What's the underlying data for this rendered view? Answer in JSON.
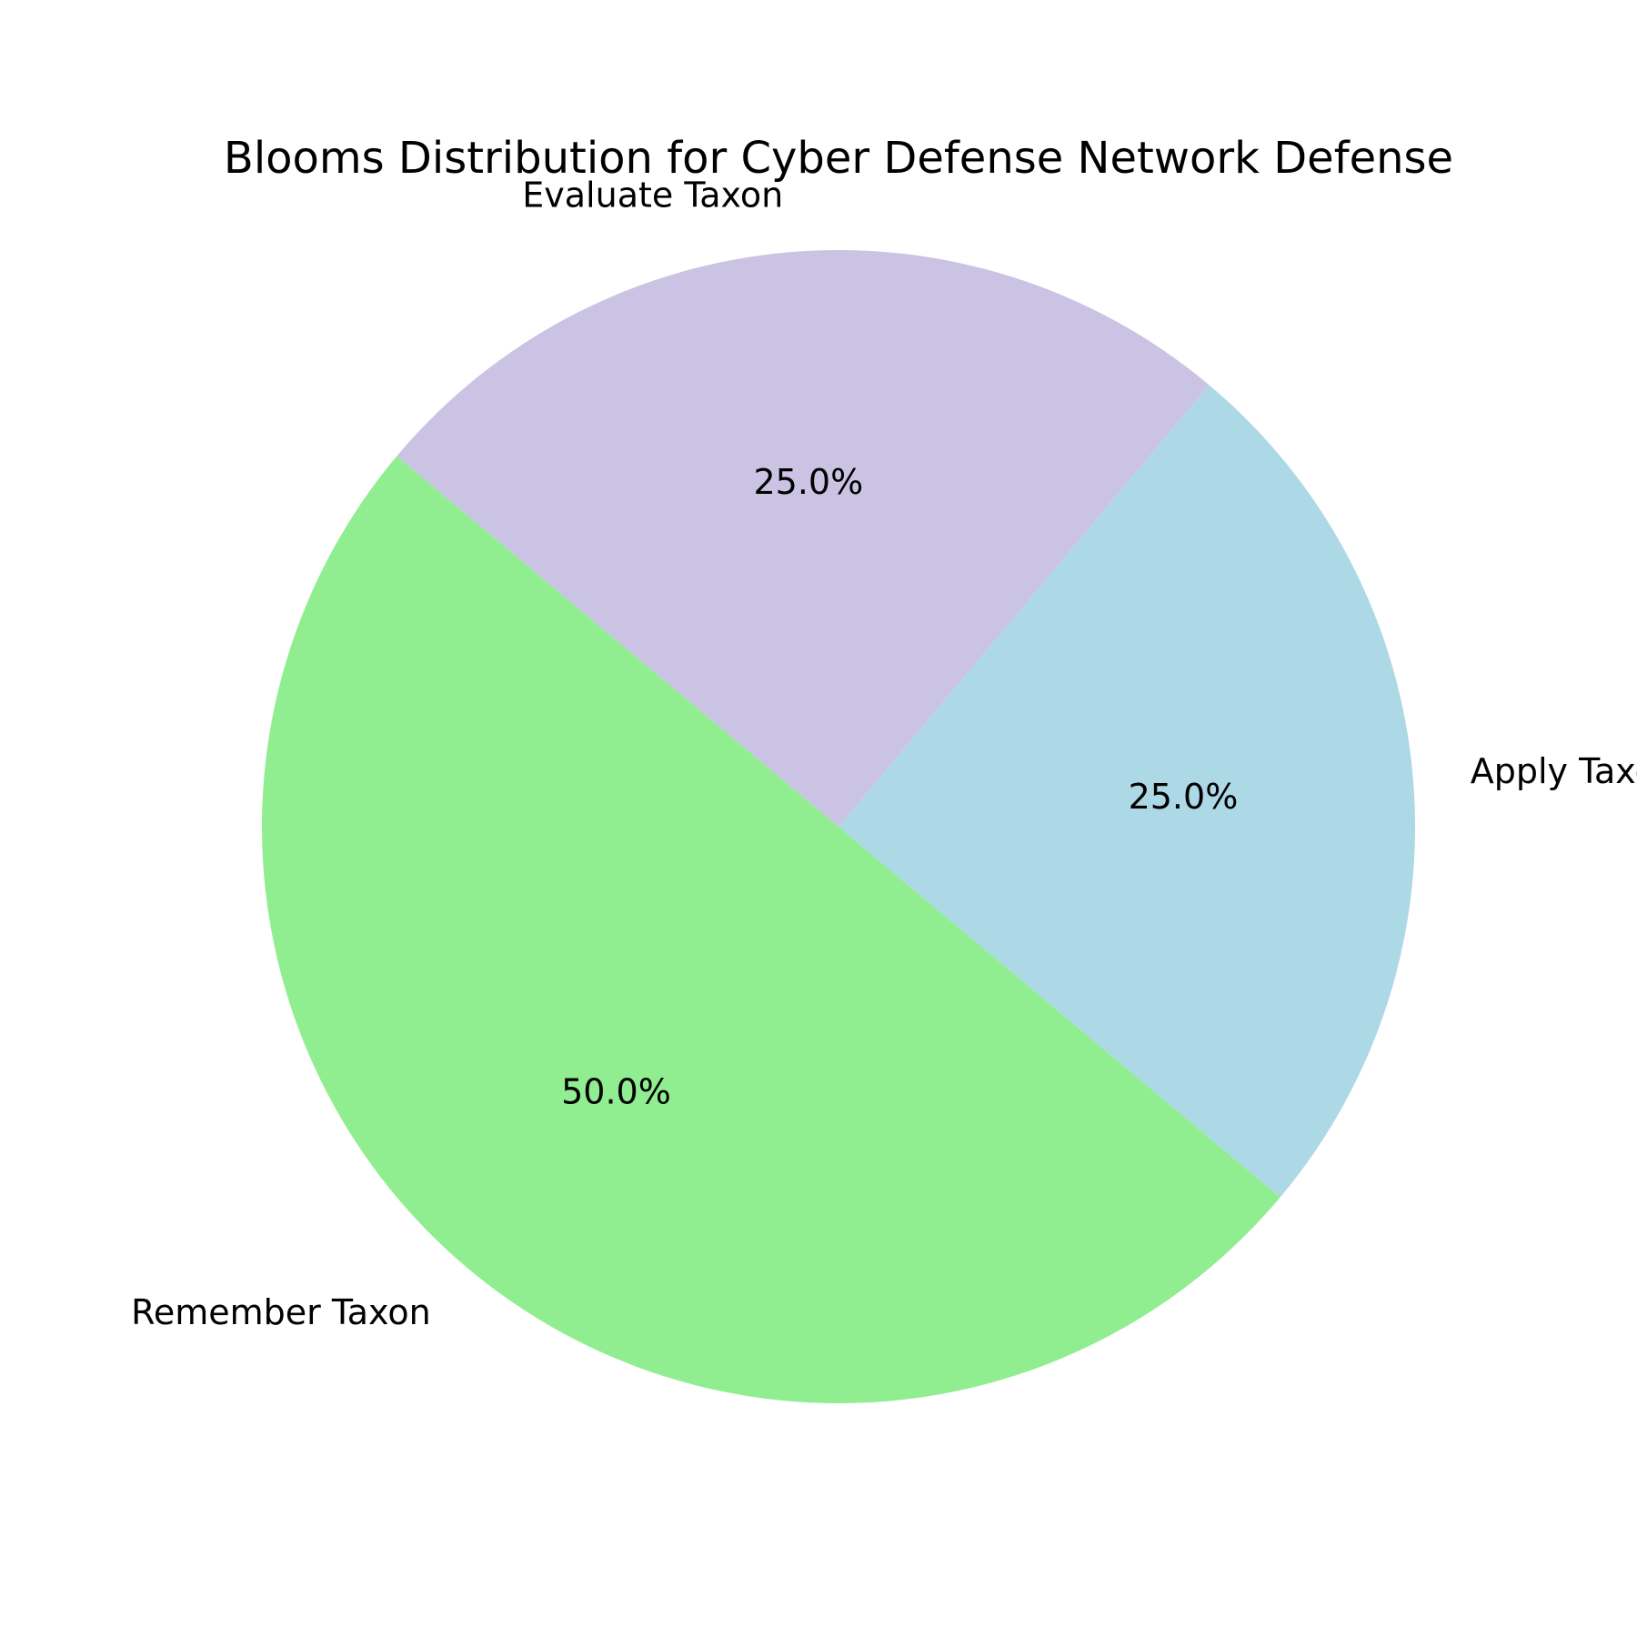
{
  "chart_data": {
    "type": "pie",
    "title": "Blooms Distribution for Cyber Defense Network Defense",
    "start_angle_deg": 140,
    "direction": "counterclockwise",
    "slices": [
      {
        "label": "Remember Taxon",
        "value": 50.0,
        "pct_label": "50.0%",
        "color": "#90ee90"
      },
      {
        "label": "Apply Taxon",
        "value": 25.0,
        "pct_label": "25.0%",
        "color": "#add8e6"
      },
      {
        "label": "Evaluate Taxon",
        "value": 25.0,
        "pct_label": "25.0%",
        "color": "#cbc3e3"
      }
    ]
  }
}
